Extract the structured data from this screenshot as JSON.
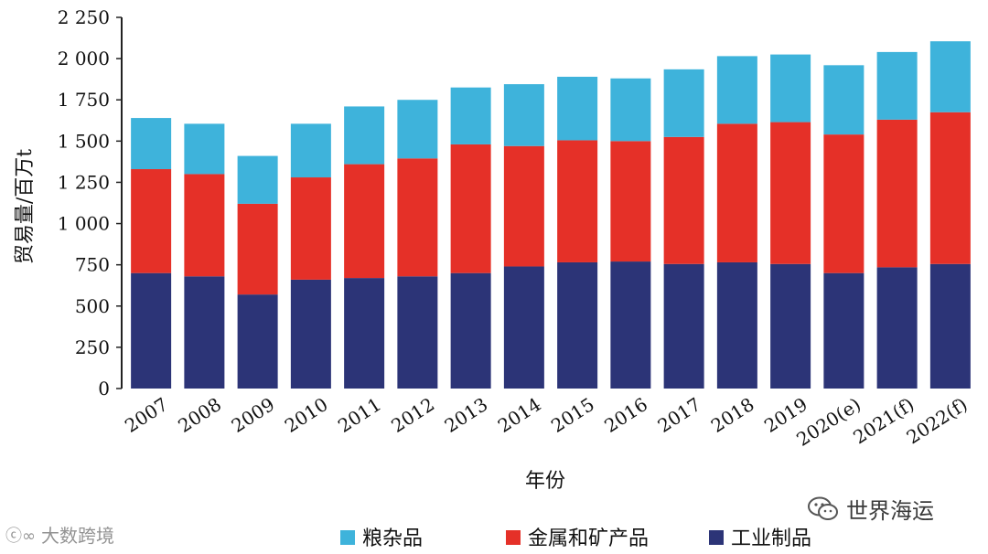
{
  "chart_data": {
    "type": "bar",
    "stacked": true,
    "xlabel": "年份",
    "ylabel": "贸易量/百万t",
    "ylim": [
      0,
      2250
    ],
    "yticks": [
      0,
      250,
      500,
      750,
      1000,
      1250,
      1500,
      1750,
      2000,
      2250
    ],
    "ytick_labels": [
      "0",
      "250",
      "500",
      "750",
      "1 000",
      "1 250",
      "1 500",
      "1 750",
      "2 000",
      "2 250"
    ],
    "categories": [
      "2007",
      "2008",
      "2009",
      "2010",
      "2011",
      "2012",
      "2013",
      "2014",
      "2015",
      "2016",
      "2017",
      "2018",
      "2019",
      "2020(e)",
      "2021(f)",
      "2022(f)"
    ],
    "series": [
      {
        "name": "工业制品",
        "color": "#2c3477",
        "values": [
          700,
          680,
          570,
          660,
          670,
          680,
          700,
          740,
          765,
          770,
          755,
          765,
          755,
          700,
          735,
          755
        ]
      },
      {
        "name": "金属和矿产品",
        "color": "#e53028",
        "values": [
          630,
          620,
          550,
          620,
          690,
          715,
          780,
          730,
          740,
          730,
          770,
          840,
          860,
          840,
          895,
          920
        ]
      },
      {
        "name": "粮杂品",
        "color": "#3eb3db",
        "values": [
          310,
          305,
          290,
          325,
          350,
          355,
          345,
          375,
          385,
          380,
          410,
          410,
          410,
          420,
          410,
          430
        ]
      }
    ],
    "legend_order": [
      "粮杂品",
      "金属和矿产品",
      "工业制品"
    ],
    "legend_position": "bottom",
    "grid": false
  },
  "watermarks": {
    "left": "大数跨境",
    "right": "世界海运"
  }
}
